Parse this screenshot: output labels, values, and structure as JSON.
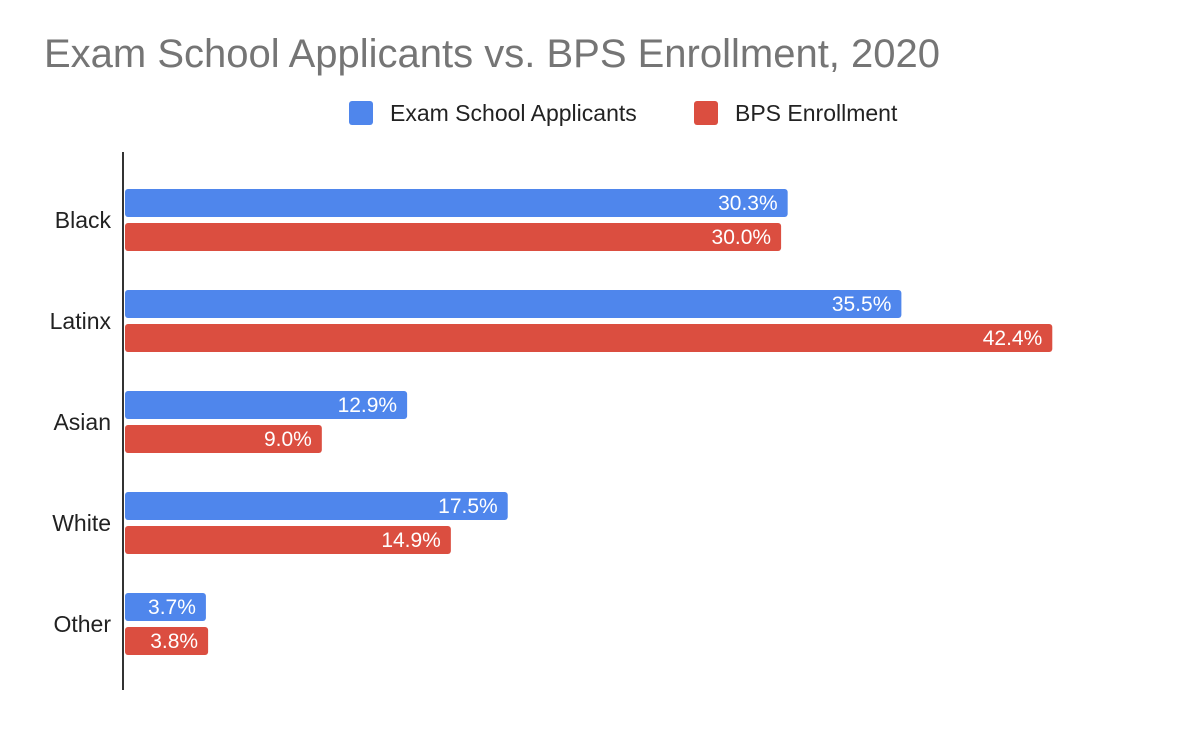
{
  "chart_data": {
    "type": "bar",
    "orientation": "horizontal",
    "title": "Exam School Applicants vs. BPS Enrollment, 2020",
    "categories": [
      "Black",
      "Latinx",
      "Asian",
      "White",
      "Other"
    ],
    "series": [
      {
        "name": "Exam School Applicants",
        "color": "#4f86ec",
        "values": [
          30.3,
          35.5,
          12.9,
          17.5,
          3.7
        ],
        "labels": [
          "30.3%",
          "35.5%",
          "12.9%",
          "17.5%",
          "3.7%"
        ]
      },
      {
        "name": "BPS Enrollment",
        "color": "#db4e40",
        "values": [
          30.0,
          42.4,
          9.0,
          14.9,
          3.8
        ],
        "labels": [
          "30.0%",
          "42.4%",
          "9.0%",
          "14.9%",
          "3.8%"
        ]
      }
    ],
    "xlim": [
      0,
      45
    ],
    "grid": false,
    "legend_position": "top-center",
    "axis_color": "#333333"
  }
}
